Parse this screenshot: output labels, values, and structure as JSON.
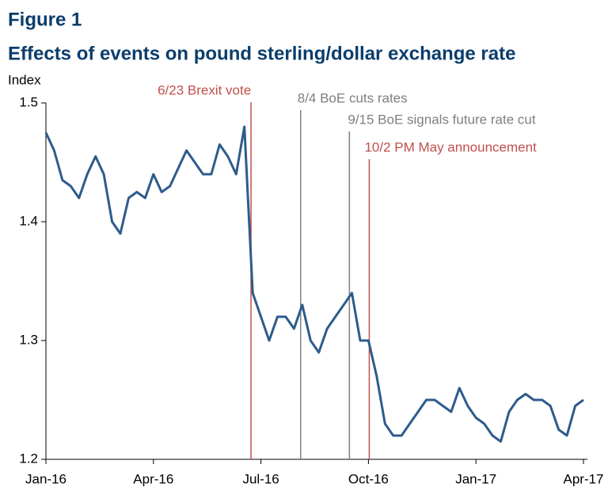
{
  "chart_data": {
    "type": "line",
    "title": "Figure 1",
    "subtitle": "Effects of events on pound sterling/dollar exchange rate",
    "y_label": "Index",
    "categories": [
      "Jan-16",
      null,
      null,
      null,
      null,
      null,
      null,
      null,
      null,
      null,
      null,
      null,
      null,
      "Apr-16",
      null,
      null,
      null,
      null,
      null,
      null,
      null,
      null,
      null,
      null,
      null,
      null,
      "Jul-16",
      null,
      null,
      null,
      null,
      null,
      null,
      null,
      null,
      null,
      null,
      null,
      null,
      "Oct-16",
      null,
      null,
      null,
      null,
      null,
      null,
      null,
      null,
      null,
      null,
      null,
      null,
      "Jan-17",
      null,
      null,
      null,
      null,
      null,
      null,
      null,
      null,
      null,
      null,
      null,
      null,
      "Apr-17"
    ],
    "series": [
      {
        "color": "#2e5b8c",
        "values": [
          1.475,
          1.46,
          1.435,
          1.43,
          1.42,
          1.44,
          1.455,
          1.44,
          1.4,
          1.39,
          1.42,
          1.425,
          1.42,
          1.44,
          1.425,
          1.43,
          1.445,
          1.46,
          1.45,
          1.44,
          1.44,
          1.465,
          1.455,
          1.44,
          1.48,
          1.34,
          1.32,
          1.3,
          1.32,
          1.32,
          1.31,
          1.33,
          1.3,
          1.29,
          1.31,
          1.32,
          1.33,
          1.34,
          1.3,
          1.3,
          1.27,
          1.23,
          1.22,
          1.22,
          1.23,
          1.24,
          1.25,
          1.25,
          1.245,
          1.24,
          1.26,
          1.245,
          1.235,
          1.23,
          1.22,
          1.215,
          1.24,
          1.25,
          1.255,
          1.25,
          1.25,
          1.245,
          1.225,
          1.22,
          1.245,
          1.25
        ]
      }
    ],
    "events": [
      {
        "label": "6/23 Brexit vote",
        "color": "#c0504d",
        "at": 24.8
      },
      {
        "label": "8/4 BoE cuts rates",
        "color": "#7f7f7f",
        "at": 30.8
      },
      {
        "label": "9/15 BoE signals future rate cut",
        "color": "#7f7f7f",
        "at": 36.7
      },
      {
        "label": "10/2 PM May announcement",
        "color": "#c0504d",
        "at": 39.1
      }
    ],
    "ylim": [
      1.2,
      1.5
    ],
    "yticks": [
      1.2,
      1.3,
      1.4,
      1.5
    ]
  }
}
